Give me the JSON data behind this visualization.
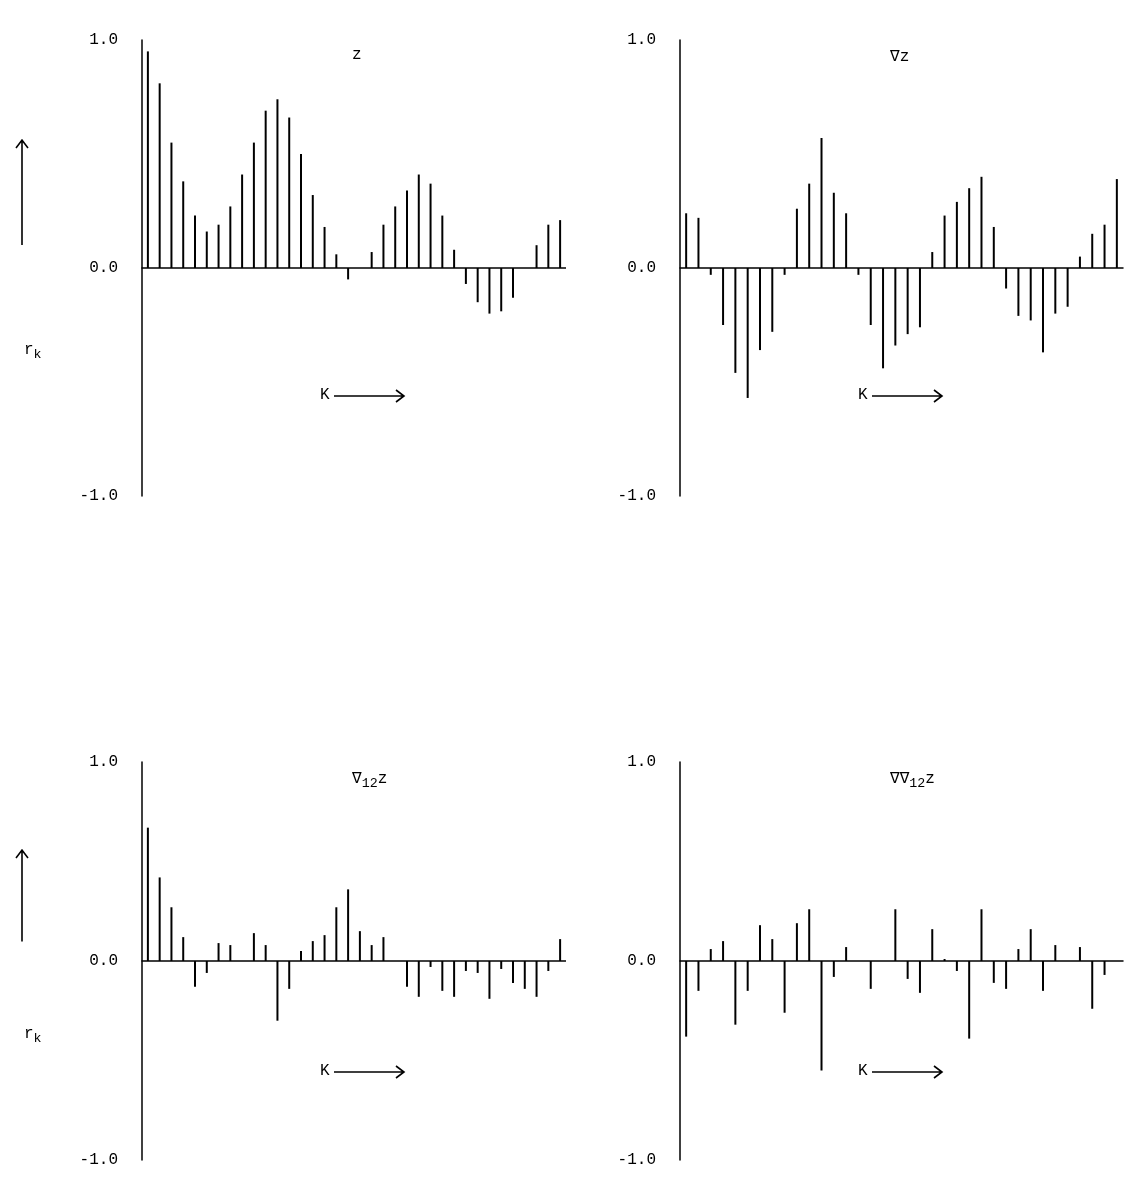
{
  "chart_data": [
    {
      "type": "bar",
      "title": "z",
      "xlabel": "K",
      "ylabel": "r$_{k}$",
      "tick_labels": "y",
      "categories": [
        null,
        null,
        null,
        null,
        null,
        null,
        null,
        null,
        null,
        null,
        null,
        null,
        null,
        null,
        null,
        null,
        null,
        null,
        null,
        null,
        null,
        null,
        null,
        null,
        null,
        null,
        null,
        null,
        null,
        null,
        null,
        null,
        null,
        null,
        null,
        null
      ],
      "series": [
        {
          "color": "#000000",
          "values": [
            0.95,
            0.81,
            0.55,
            0.38,
            0.23,
            0.16,
            0.19,
            0.27,
            0.41,
            0.55,
            0.69,
            0.74,
            0.66,
            0.5,
            0.32,
            0.18,
            0.06,
            -0.05,
            0,
            0.07,
            0.19,
            0.27,
            0.34,
            0.41,
            0.37,
            0.23,
            0.08,
            -0.07,
            -0.15,
            -0.2,
            -0.19,
            -0.13,
            0,
            0.1,
            0.19,
            0.21
          ]
        }
      ],
      "ylim": [
        -1,
        1
      ],
      "yticks": [
        {
          "value": 1,
          "label": "1.0"
        },
        {
          "value": 0,
          "label": "0.0"
        },
        {
          "value": -1,
          "label": "-1.0"
        }
      ]
    },
    {
      "type": "bar",
      "title": "∇z",
      "xlabel": "K",
      "tick_labels": "y",
      "categories": [
        null,
        null,
        null,
        null,
        null,
        null,
        null,
        null,
        null,
        null,
        null,
        null,
        null,
        null,
        null,
        null,
        null,
        null,
        null,
        null,
        null,
        null,
        null,
        null,
        null,
        null,
        null,
        null,
        null,
        null,
        null,
        null,
        null,
        null,
        null,
        null
      ],
      "series": [
        {
          "color": "#000000",
          "values": [
            0.24,
            0.22,
            -0.03,
            -0.25,
            -0.46,
            -0.57,
            -0.36,
            -0.28,
            -0.03,
            0.26,
            0.37,
            0.57,
            0.33,
            0.24,
            -0.03,
            -0.25,
            -0.44,
            -0.34,
            -0.29,
            -0.26,
            0.07,
            0.23,
            0.29,
            0.35,
            0.4,
            0.18,
            -0.09,
            -0.21,
            -0.23,
            -0.37,
            -0.2,
            -0.17,
            0.05,
            0.15,
            0.19,
            0.39
          ]
        }
      ],
      "ylim": [
        -1,
        1
      ],
      "yticks": [
        {
          "value": 1,
          "label": "1.0"
        },
        {
          "value": 0,
          "label": "0.0"
        },
        {
          "value": -1,
          "label": "-1.0"
        }
      ]
    },
    {
      "type": "bar",
      "title": "∇$_{12}$z",
      "xlabel": "K",
      "ylabel": "r$_{k}$",
      "tick_labels": "y",
      "categories": [
        null,
        null,
        null,
        null,
        null,
        null,
        null,
        null,
        null,
        null,
        null,
        null,
        null,
        null,
        null,
        null,
        null,
        null,
        null,
        null,
        null,
        null,
        null,
        null,
        null,
        null,
        null,
        null,
        null,
        null,
        null,
        null,
        null,
        null,
        null,
        null
      ],
      "series": [
        {
          "color": "#000000",
          "values": [
            0.67,
            0.42,
            0.27,
            0.12,
            -0.13,
            -0.06,
            0.09,
            0.08,
            0,
            0.14,
            0.08,
            -0.3,
            -0.14,
            0.05,
            0.1,
            0.13,
            0.27,
            0.36,
            0.15,
            0.08,
            0.12,
            0,
            -0.13,
            -0.18,
            -0.03,
            -0.15,
            -0.18,
            -0.05,
            -0.06,
            -0.19,
            -0.04,
            -0.11,
            -0.14,
            -0.18,
            -0.05,
            0.11
          ]
        }
      ],
      "ylim": [
        -1,
        1
      ],
      "yticks": [
        {
          "value": 1,
          "label": "1.0"
        },
        {
          "value": 0,
          "label": "0.0"
        },
        {
          "value": -1,
          "label": "-1.0"
        }
      ]
    },
    {
      "type": "bar",
      "title": "∇∇$_{12}$z",
      "xlabel": "K",
      "tick_labels": "y",
      "categories": [
        null,
        null,
        null,
        null,
        null,
        null,
        null,
        null,
        null,
        null,
        null,
        null,
        null,
        null,
        null,
        null,
        null,
        null,
        null,
        null,
        null,
        null,
        null,
        null,
        null,
        null,
        null,
        null,
        null,
        null,
        null,
        null,
        null,
        null,
        null,
        null
      ],
      "series": [
        {
          "color": "#000000",
          "values": [
            -0.38,
            -0.15,
            0.06,
            0.1,
            -0.32,
            -0.15,
            0.18,
            0.11,
            -0.26,
            0.19,
            0.26,
            -0.55,
            -0.08,
            0.07,
            0,
            -0.14,
            0,
            0.26,
            -0.09,
            -0.16,
            0.16,
            0.01,
            -0.05,
            -0.39,
            0.26,
            -0.11,
            -0.14,
            0.06,
            0.16,
            -0.15,
            0.08,
            0,
            0.07,
            -0.24,
            -0.07,
            0
          ]
        }
      ],
      "ylim": [
        -1,
        1
      ],
      "yticks": [
        {
          "value": 1,
          "label": "1.0"
        },
        {
          "value": 0,
          "label": "0.0"
        },
        {
          "value": -1,
          "label": "-1.0"
        }
      ]
    }
  ]
}
